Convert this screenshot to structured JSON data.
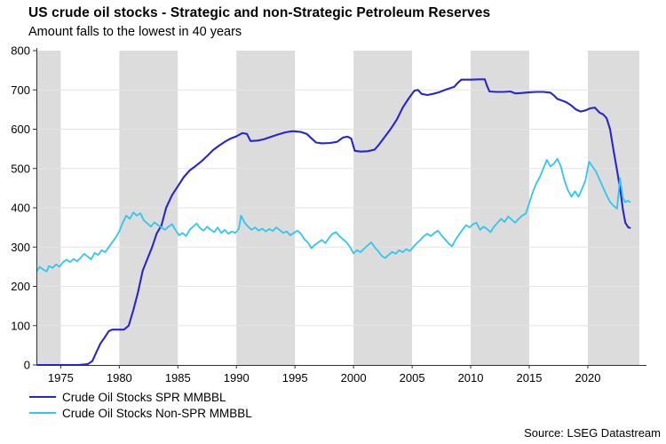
{
  "header": {
    "title": "US crude oil stocks - Strategic and non-Strategic Petroleum Reserves",
    "subtitle": "Amount falls to the lowest in 40 years"
  },
  "source": "Source: LSEG Datastream",
  "chart_data": {
    "type": "line",
    "title": "US crude oil stocks - Strategic and non-Strategic Petroleum Reserves",
    "subtitle": "Amount falls to the lowest in 40 years",
    "xlabel": "",
    "ylabel": "",
    "x_axis": {
      "min": 1973,
      "max": 2024.4,
      "ticks": [
        1975,
        1980,
        1985,
        1990,
        1995,
        2000,
        2005,
        2010,
        2015,
        2020
      ]
    },
    "y_axis": {
      "min": 0,
      "max": 800,
      "ticks": [
        0,
        100,
        200,
        300,
        400,
        500,
        600,
        700,
        800
      ]
    },
    "grid": "horizontal",
    "legend_position": "bottom-left",
    "colors": {
      "background": "#ffffff",
      "band": "#dcdcdc",
      "grid": "#e3e3e3",
      "axis": "#333333",
      "text": "#000000"
    },
    "shaded_bands": [
      [
        1973,
        1975
      ],
      [
        1980,
        1985
      ],
      [
        1990,
        1995
      ],
      [
        2000,
        2005
      ],
      [
        2010,
        2015
      ],
      [
        2020,
        2024.4
      ]
    ],
    "series": [
      {
        "name": "Crude Oil Stocks SPR MMBBL",
        "color": "#2626cf",
        "points": [
          [
            1973.0,
            0
          ],
          [
            1976.5,
            0
          ],
          [
            1977.3,
            2
          ],
          [
            1977.7,
            10
          ],
          [
            1978.0,
            30
          ],
          [
            1978.4,
            55
          ],
          [
            1978.8,
            72
          ],
          [
            1979.1,
            86
          ],
          [
            1979.4,
            90
          ],
          [
            1980.4,
            90
          ],
          [
            1980.8,
            100
          ],
          [
            1981.2,
            140
          ],
          [
            1981.6,
            185
          ],
          [
            1982.0,
            240
          ],
          [
            1982.4,
            270
          ],
          [
            1982.8,
            300
          ],
          [
            1983.2,
            335
          ],
          [
            1983.6,
            355
          ],
          [
            1984.0,
            400
          ],
          [
            1984.5,
            432
          ],
          [
            1985.0,
            455
          ],
          [
            1985.5,
            478
          ],
          [
            1986.0,
            495
          ],
          [
            1986.5,
            506
          ],
          [
            1987.0,
            518
          ],
          [
            1987.5,
            532
          ],
          [
            1988.0,
            547
          ],
          [
            1988.5,
            558
          ],
          [
            1989.0,
            568
          ],
          [
            1989.5,
            576
          ],
          [
            1990.0,
            582
          ],
          [
            1990.5,
            590
          ],
          [
            1990.9,
            588
          ],
          [
            1991.2,
            570
          ],
          [
            1991.8,
            571
          ],
          [
            1992.3,
            574
          ],
          [
            1993.0,
            581
          ],
          [
            1993.6,
            587
          ],
          [
            1994.2,
            592
          ],
          [
            1994.8,
            595
          ],
          [
            1995.5,
            593
          ],
          [
            1996.0,
            588
          ],
          [
            1996.4,
            577
          ],
          [
            1996.8,
            566
          ],
          [
            1997.3,
            564
          ],
          [
            1998.0,
            565
          ],
          [
            1998.6,
            568
          ],
          [
            1999.1,
            579
          ],
          [
            1999.5,
            581
          ],
          [
            1999.8,
            576
          ],
          [
            2000.1,
            545
          ],
          [
            2000.6,
            543
          ],
          [
            2001.2,
            544
          ],
          [
            2001.8,
            548
          ],
          [
            2002.2,
            562
          ],
          [
            2002.7,
            582
          ],
          [
            2003.2,
            602
          ],
          [
            2003.7,
            625
          ],
          [
            2004.2,
            655
          ],
          [
            2004.7,
            678
          ],
          [
            2005.2,
            698
          ],
          [
            2005.5,
            700
          ],
          [
            2005.8,
            690
          ],
          [
            2006.3,
            687
          ],
          [
            2006.8,
            690
          ],
          [
            2007.3,
            694
          ],
          [
            2007.8,
            700
          ],
          [
            2008.2,
            704
          ],
          [
            2008.6,
            708
          ],
          [
            2008.9,
            718
          ],
          [
            2009.2,
            726
          ],
          [
            2010.0,
            726
          ],
          [
            2010.8,
            727
          ],
          [
            2011.2,
            727
          ],
          [
            2011.4,
            710
          ],
          [
            2011.6,
            696
          ],
          [
            2012.2,
            695
          ],
          [
            2012.8,
            695
          ],
          [
            2013.4,
            696
          ],
          [
            2013.8,
            691
          ],
          [
            2014.3,
            692
          ],
          [
            2015.0,
            694
          ],
          [
            2015.6,
            695
          ],
          [
            2016.2,
            695
          ],
          [
            2016.8,
            693
          ],
          [
            2017.1,
            686
          ],
          [
            2017.4,
            677
          ],
          [
            2017.8,
            673
          ],
          [
            2018.2,
            668
          ],
          [
            2018.6,
            660
          ],
          [
            2019.0,
            650
          ],
          [
            2019.4,
            645
          ],
          [
            2019.8,
            648
          ],
          [
            2020.2,
            653
          ],
          [
            2020.6,
            655
          ],
          [
            2021.0,
            642
          ],
          [
            2021.3,
            638
          ],
          [
            2021.6,
            628
          ],
          [
            2021.9,
            600
          ],
          [
            2022.2,
            545
          ],
          [
            2022.5,
            495
          ],
          [
            2022.8,
            440
          ],
          [
            2023.0,
            395
          ],
          [
            2023.2,
            362
          ],
          [
            2023.45,
            350
          ],
          [
            2023.6,
            349
          ]
        ]
      },
      {
        "name": "Crude Oil Stocks Non-SPR MMBBL",
        "color": "#2fc6ef",
        "points": [
          [
            1973.0,
            240
          ],
          [
            1973.2,
            250
          ],
          [
            1973.5,
            243
          ],
          [
            1973.8,
            238
          ],
          [
            1974.0,
            252
          ],
          [
            1974.3,
            247
          ],
          [
            1974.6,
            256
          ],
          [
            1974.9,
            250
          ],
          [
            1975.2,
            262
          ],
          [
            1975.5,
            268
          ],
          [
            1975.8,
            262
          ],
          [
            1976.1,
            270
          ],
          [
            1976.4,
            264
          ],
          [
            1976.7,
            273
          ],
          [
            1977.0,
            283
          ],
          [
            1977.3,
            276
          ],
          [
            1977.6,
            269
          ],
          [
            1977.9,
            285
          ],
          [
            1978.2,
            280
          ],
          [
            1978.5,
            292
          ],
          [
            1978.8,
            287
          ],
          [
            1979.1,
            300
          ],
          [
            1979.4,
            312
          ],
          [
            1979.7,
            325
          ],
          [
            1980.0,
            340
          ],
          [
            1980.3,
            362
          ],
          [
            1980.6,
            380
          ],
          [
            1980.9,
            372
          ],
          [
            1981.2,
            388
          ],
          [
            1981.5,
            380
          ],
          [
            1981.8,
            386
          ],
          [
            1982.1,
            368
          ],
          [
            1982.4,
            360
          ],
          [
            1982.7,
            352
          ],
          [
            1983.0,
            363
          ],
          [
            1983.3,
            356
          ],
          [
            1983.6,
            350
          ],
          [
            1983.9,
            344
          ],
          [
            1984.2,
            352
          ],
          [
            1984.5,
            358
          ],
          [
            1984.8,
            344
          ],
          [
            1985.1,
            330
          ],
          [
            1985.4,
            336
          ],
          [
            1985.7,
            328
          ],
          [
            1986.0,
            344
          ],
          [
            1986.3,
            352
          ],
          [
            1986.6,
            360
          ],
          [
            1986.9,
            348
          ],
          [
            1987.2,
            342
          ],
          [
            1987.5,
            352
          ],
          [
            1987.8,
            344
          ],
          [
            1988.1,
            338
          ],
          [
            1988.4,
            350
          ],
          [
            1988.7,
            336
          ],
          [
            1989.0,
            344
          ],
          [
            1989.3,
            334
          ],
          [
            1989.6,
            340
          ],
          [
            1989.9,
            336
          ],
          [
            1990.2,
            346
          ],
          [
            1990.4,
            380
          ],
          [
            1990.7,
            362
          ],
          [
            1991.0,
            352
          ],
          [
            1991.3,
            344
          ],
          [
            1991.6,
            350
          ],
          [
            1991.9,
            342
          ],
          [
            1992.2,
            347
          ],
          [
            1992.5,
            340
          ],
          [
            1992.8,
            346
          ],
          [
            1993.1,
            341
          ],
          [
            1993.4,
            350
          ],
          [
            1993.7,
            343
          ],
          [
            1994.0,
            336
          ],
          [
            1994.3,
            340
          ],
          [
            1994.6,
            330
          ],
          [
            1994.9,
            336
          ],
          [
            1995.2,
            342
          ],
          [
            1995.5,
            334
          ],
          [
            1995.8,
            320
          ],
          [
            1996.1,
            312
          ],
          [
            1996.4,
            297
          ],
          [
            1996.7,
            306
          ],
          [
            1997.0,
            312
          ],
          [
            1997.3,
            318
          ],
          [
            1997.6,
            310
          ],
          [
            1997.9,
            323
          ],
          [
            1998.2,
            334
          ],
          [
            1998.5,
            338
          ],
          [
            1998.8,
            328
          ],
          [
            1999.1,
            320
          ],
          [
            1999.4,
            312
          ],
          [
            1999.7,
            300
          ],
          [
            2000.0,
            284
          ],
          [
            2000.3,
            292
          ],
          [
            2000.6,
            287
          ],
          [
            2000.9,
            296
          ],
          [
            2001.2,
            304
          ],
          [
            2001.5,
            312
          ],
          [
            2001.8,
            300
          ],
          [
            2002.1,
            290
          ],
          [
            2002.4,
            278
          ],
          [
            2002.7,
            272
          ],
          [
            2003.0,
            280
          ],
          [
            2003.3,
            288
          ],
          [
            2003.6,
            283
          ],
          [
            2003.9,
            292
          ],
          [
            2004.2,
            287
          ],
          [
            2004.5,
            295
          ],
          [
            2004.8,
            290
          ],
          [
            2005.1,
            300
          ],
          [
            2005.4,
            310
          ],
          [
            2005.7,
            318
          ],
          [
            2006.0,
            328
          ],
          [
            2006.3,
            334
          ],
          [
            2006.6,
            328
          ],
          [
            2006.9,
            336
          ],
          [
            2007.2,
            342
          ],
          [
            2007.5,
            330
          ],
          [
            2007.8,
            320
          ],
          [
            2008.1,
            310
          ],
          [
            2008.4,
            302
          ],
          [
            2008.7,
            318
          ],
          [
            2009.0,
            332
          ],
          [
            2009.3,
            344
          ],
          [
            2009.6,
            356
          ],
          [
            2009.9,
            350
          ],
          [
            2010.2,
            358
          ],
          [
            2010.5,
            362
          ],
          [
            2010.8,
            344
          ],
          [
            2011.1,
            352
          ],
          [
            2011.4,
            346
          ],
          [
            2011.7,
            338
          ],
          [
            2012.0,
            352
          ],
          [
            2012.3,
            362
          ],
          [
            2012.6,
            372
          ],
          [
            2012.9,
            364
          ],
          [
            2013.2,
            378
          ],
          [
            2013.5,
            370
          ],
          [
            2013.8,
            362
          ],
          [
            2014.1,
            372
          ],
          [
            2014.4,
            380
          ],
          [
            2014.7,
            385
          ],
          [
            2015.0,
            412
          ],
          [
            2015.3,
            440
          ],
          [
            2015.6,
            462
          ],
          [
            2015.9,
            478
          ],
          [
            2016.2,
            500
          ],
          [
            2016.5,
            522
          ],
          [
            2016.8,
            505
          ],
          [
            2017.1,
            512
          ],
          [
            2017.4,
            525
          ],
          [
            2017.7,
            505
          ],
          [
            2018.0,
            470
          ],
          [
            2018.3,
            445
          ],
          [
            2018.6,
            428
          ],
          [
            2018.9,
            442
          ],
          [
            2019.2,
            428
          ],
          [
            2019.5,
            448
          ],
          [
            2019.8,
            470
          ],
          [
            2020.1,
            517
          ],
          [
            2020.4,
            505
          ],
          [
            2020.7,
            492
          ],
          [
            2021.0,
            472
          ],
          [
            2021.3,
            452
          ],
          [
            2021.6,
            432
          ],
          [
            2021.9,
            415
          ],
          [
            2022.2,
            405
          ],
          [
            2022.5,
            398
          ],
          [
            2022.75,
            475
          ],
          [
            2023.0,
            425
          ],
          [
            2023.2,
            414
          ],
          [
            2023.4,
            418
          ],
          [
            2023.6,
            415
          ]
        ]
      }
    ]
  }
}
